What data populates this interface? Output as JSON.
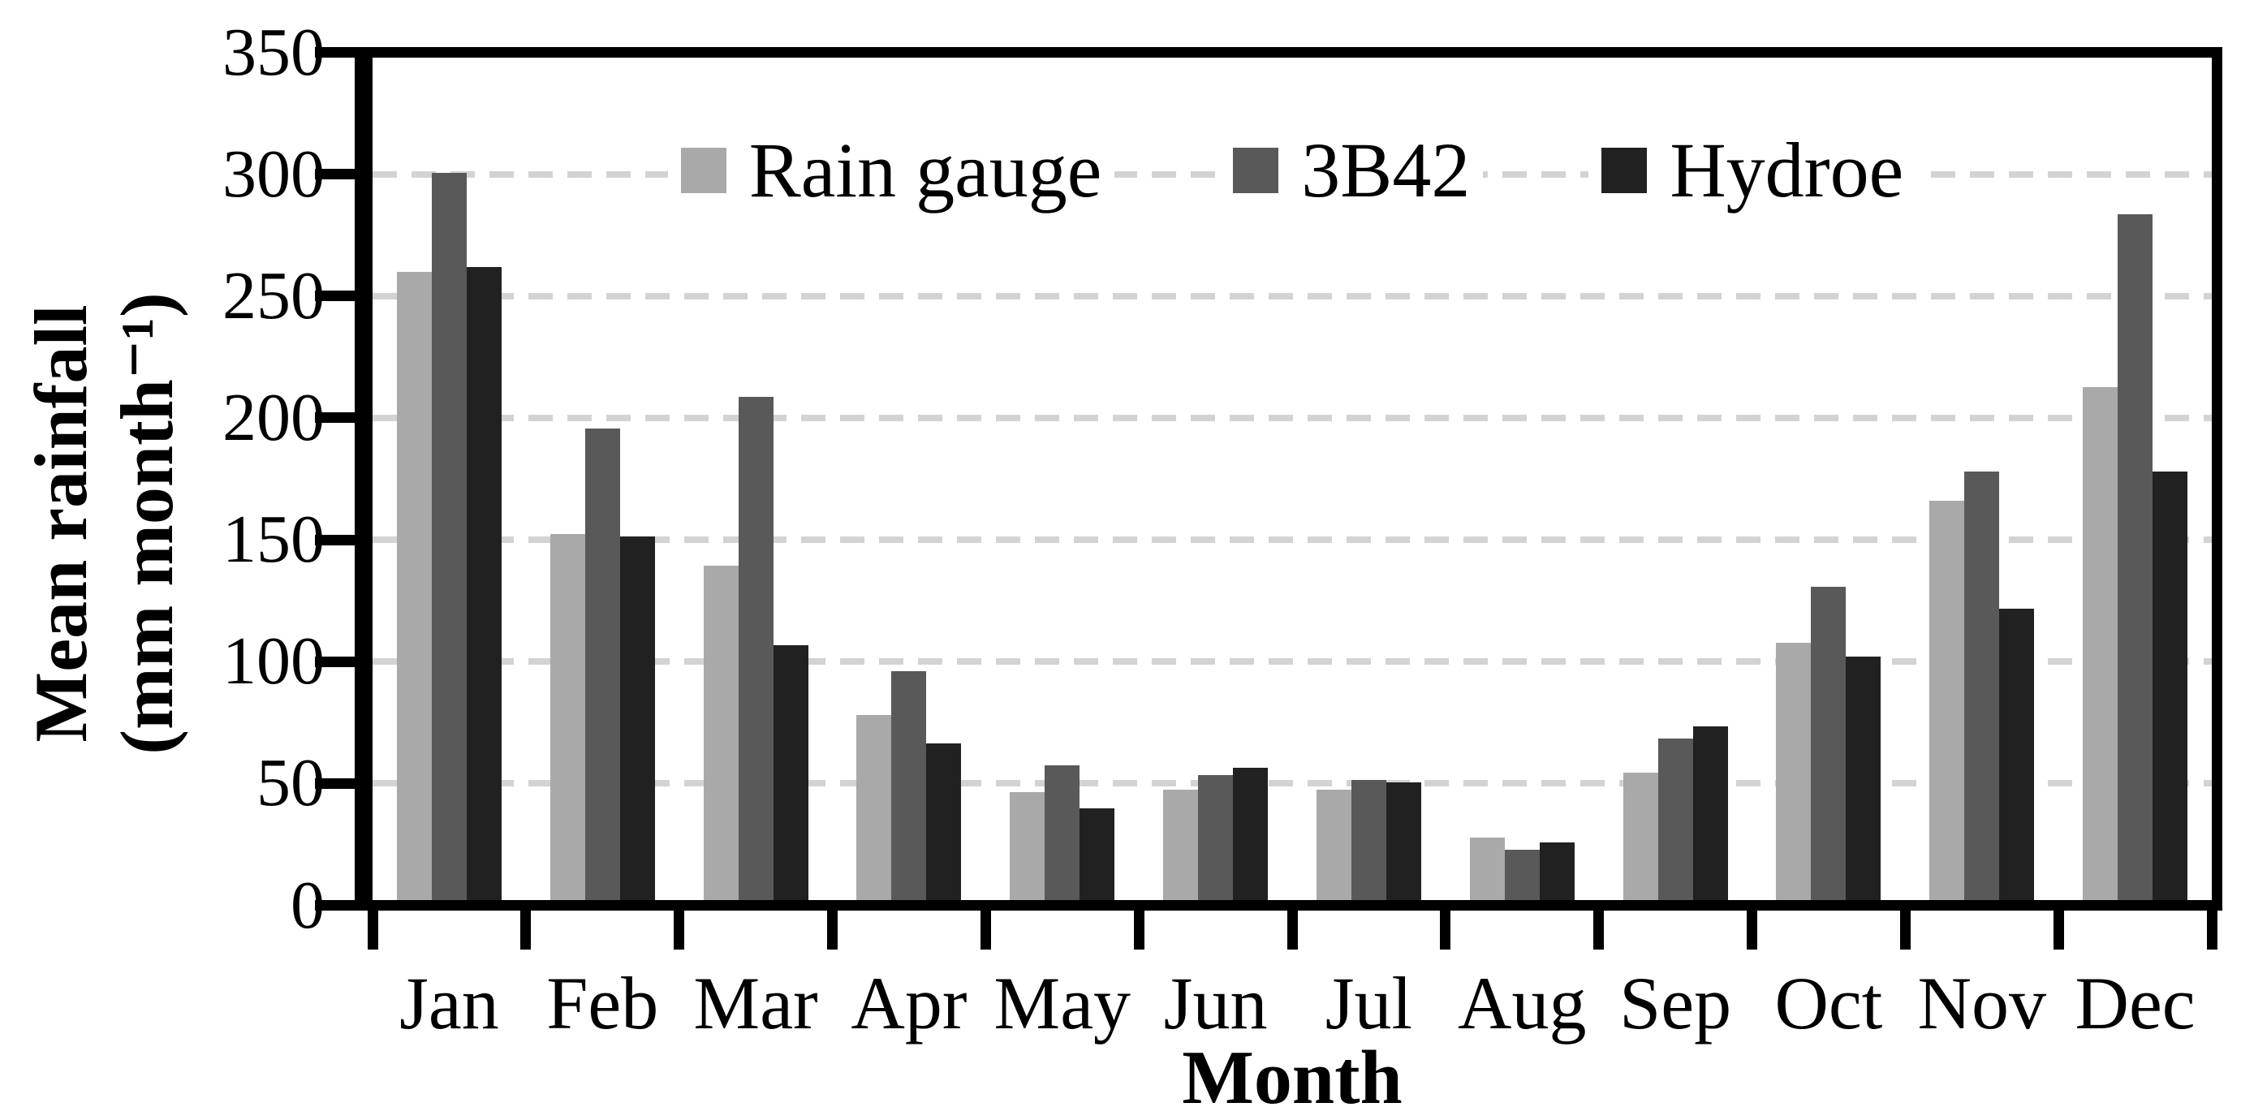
{
  "figure": {
    "xlabel": "Month",
    "ylabel_line1": "Mean rainfall",
    "ylabel_line2": "(mm month⁻¹)"
  },
  "chart_data": {
    "type": "bar",
    "title": "",
    "categories": [
      "Jan",
      "Feb",
      "Mar",
      "Apr",
      "May",
      "Jun",
      "Jul",
      "Aug",
      "Sep",
      "Oct",
      "Nov",
      "Dec"
    ],
    "series": [
      {
        "name": "Rain gauge",
        "color": "#A9A9A9",
        "values": [
          261,
          152,
          139,
          77,
          45,
          46,
          46,
          26,
          53,
          107,
          166,
          213
        ]
      },
      {
        "name": "3B42",
        "color": "#595959",
        "values": [
          302,
          196,
          209,
          95,
          56,
          52,
          50,
          21,
          67,
          130,
          178,
          285
        ]
      },
      {
        "name": "Hydroe",
        "color": "#212121",
        "values": [
          263,
          151,
          106,
          65,
          38,
          55,
          49,
          24,
          72,
          101,
          121,
          178
        ]
      }
    ],
    "xlabel": "Month",
    "ylabel": "Mean rainfall (mm month⁻¹)",
    "ylim": [
      0,
      350
    ],
    "yticks": [
      0,
      50,
      100,
      150,
      200,
      250,
      300,
      350
    ],
    "grid": "horizontal-dashed",
    "gridline_color": "#D3D3D3",
    "axis_color": "#000000",
    "background_color": "#FFFFFF",
    "legend_position": "top-center"
  }
}
